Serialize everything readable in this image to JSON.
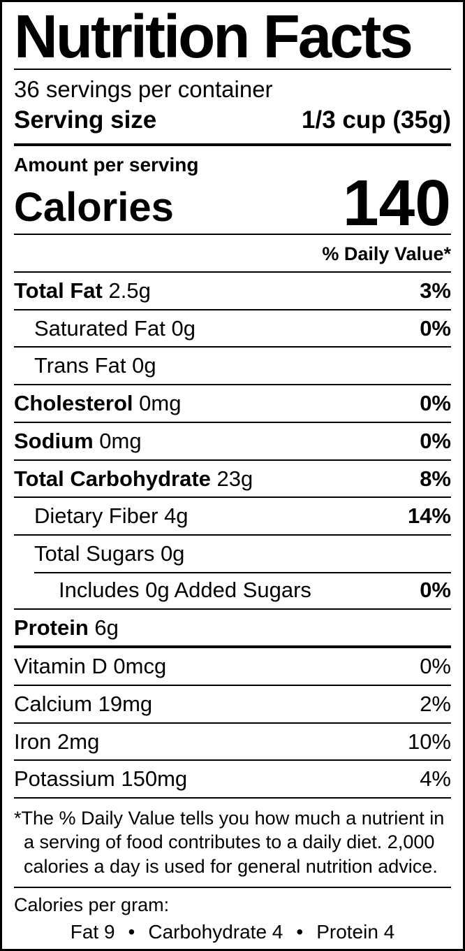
{
  "label": {
    "title": "Nutrition Facts",
    "servings_per_container": "36 servings per container",
    "serving_size_label": "Serving size",
    "serving_size_value": "1/3 cup (35g)",
    "amount_per_serving": "Amount per serving",
    "calories_label": "Calories",
    "calories_value": "140",
    "daily_value_header": "% Daily Value*",
    "nutrient_rows": [
      {
        "name": "Total Fat",
        "amount": "2.5g",
        "dv": "3%",
        "indent": 0,
        "name_bold": true,
        "dv_bold": true,
        "divider": "full"
      },
      {
        "name": "Saturated Fat",
        "amount": "0g",
        "dv": "0%",
        "indent": 1,
        "name_bold": false,
        "dv_bold": true,
        "divider": "full"
      },
      {
        "name": "Trans Fat",
        "amount": "0g",
        "dv": "",
        "indent": 1,
        "name_bold": false,
        "dv_bold": false,
        "divider": "full"
      },
      {
        "name": "Cholesterol",
        "amount": "0mg",
        "dv": "0%",
        "indent": 0,
        "name_bold": true,
        "dv_bold": true,
        "divider": "full"
      },
      {
        "name": "Sodium",
        "amount": "0mg",
        "dv": "0%",
        "indent": 0,
        "name_bold": true,
        "dv_bold": true,
        "divider": "full"
      },
      {
        "name": "Total Carbohydrate",
        "amount": "23g",
        "dv": "8%",
        "indent": 0,
        "name_bold": true,
        "dv_bold": true,
        "divider": "full"
      },
      {
        "name": "Dietary Fiber",
        "amount": "4g",
        "dv": "14%",
        "indent": 1,
        "name_bold": false,
        "dv_bold": true,
        "divider": "full"
      },
      {
        "name": "Total Sugars",
        "amount": "0g",
        "dv": "",
        "indent": 1,
        "name_bold": false,
        "dv_bold": false,
        "divider": "full"
      },
      {
        "name": "Includes 0g Added Sugars",
        "amount": "",
        "dv": "0%",
        "indent": 2,
        "name_bold": false,
        "dv_bold": true,
        "divider": "indent"
      },
      {
        "name": "Protein",
        "amount": "6g",
        "dv": "",
        "indent": 0,
        "name_bold": true,
        "dv_bold": false,
        "divider": "full"
      }
    ],
    "micronutrient_rows": [
      {
        "name": "Vitamin D",
        "amount": "0mcg",
        "dv": "0%",
        "indent": 0,
        "name_bold": false,
        "dv_bold": false,
        "divider": "none"
      },
      {
        "name": "Calcium",
        "amount": "19mg",
        "dv": "2%",
        "indent": 0,
        "name_bold": false,
        "dv_bold": false,
        "divider": "full"
      },
      {
        "name": "Iron",
        "amount": "2mg",
        "dv": "10%",
        "indent": 0,
        "name_bold": false,
        "dv_bold": false,
        "divider": "full"
      },
      {
        "name": "Potassium",
        "amount": "150mg",
        "dv": "4%",
        "indent": 0,
        "name_bold": false,
        "dv_bold": false,
        "divider": "full"
      }
    ],
    "footnote": "*The % Daily Value tells you how much a nutrient in a serving of food contributes to a daily diet. 2,000 calories a day is used for general nutrition advice.",
    "calories_per_gram": {
      "heading": "Calories per gram:",
      "items": [
        "Fat 9",
        "Carbohydrate 4",
        "Protein 4"
      ],
      "separator": "•"
    }
  },
  "colors": {
    "text": "#000000",
    "background": "#ffffff",
    "rule": "#000000"
  }
}
